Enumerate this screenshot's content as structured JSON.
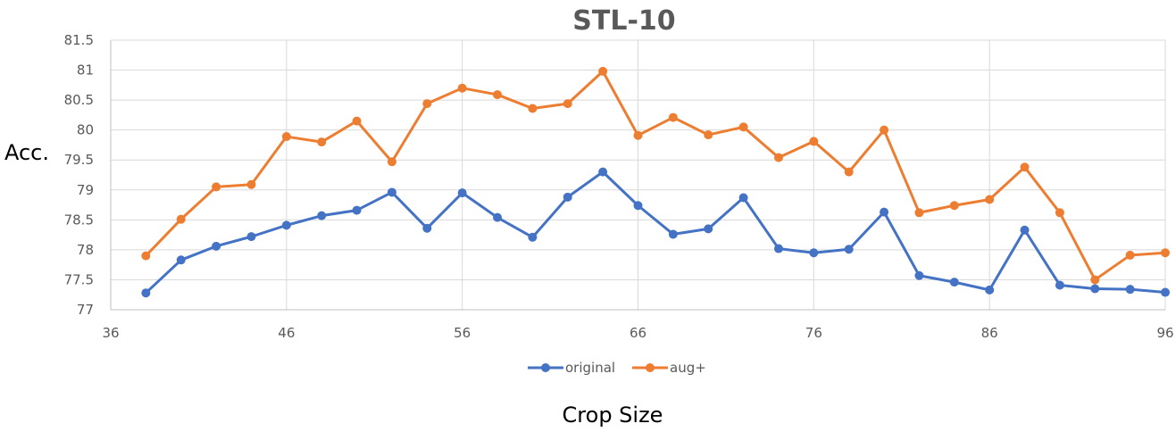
{
  "chart_data": {
    "type": "line",
    "title": "STL-10",
    "xlabel": "Crop Size",
    "ylabel": "Acc.",
    "xlim": [
      36,
      96
    ],
    "ylim": [
      77,
      81.5
    ],
    "x_ticks": [
      "36",
      "46",
      "56",
      "66",
      "76",
      "86",
      "96"
    ],
    "y_ticks": [
      "77",
      "77.5",
      "78",
      "78.5",
      "79",
      "79.5",
      "80",
      "80.5",
      "81",
      "81.5"
    ],
    "grid": true,
    "legend_position": "bottom",
    "x": [
      38,
      40,
      42,
      44,
      46,
      48,
      50,
      52,
      54,
      56,
      58,
      60,
      62,
      64,
      66,
      68,
      70,
      72,
      74,
      76,
      78,
      80,
      82,
      84,
      86,
      88,
      90,
      92,
      94,
      96
    ],
    "series": [
      {
        "name": "original",
        "color": "#4472C4",
        "values": [
          77.28,
          77.83,
          78.06,
          78.22,
          78.41,
          78.57,
          78.66,
          78.96,
          78.36,
          78.95,
          78.54,
          78.21,
          78.88,
          79.3,
          78.74,
          78.26,
          78.35,
          78.87,
          78.02,
          77.95,
          78.01,
          78.63,
          77.57,
          77.46,
          77.33,
          78.33,
          77.41,
          77.35,
          77.34,
          77.29
        ]
      },
      {
        "name": "aug+",
        "color": "#ED7D31",
        "values": [
          77.9,
          78.51,
          79.05,
          79.09,
          79.89,
          79.8,
          80.15,
          79.47,
          80.44,
          80.7,
          80.59,
          80.36,
          80.44,
          80.98,
          79.91,
          80.21,
          79.92,
          80.05,
          79.54,
          79.81,
          79.3,
          80.0,
          78.62,
          78.74,
          78.84,
          79.38,
          78.62,
          77.5,
          77.91,
          77.95
        ]
      }
    ]
  }
}
